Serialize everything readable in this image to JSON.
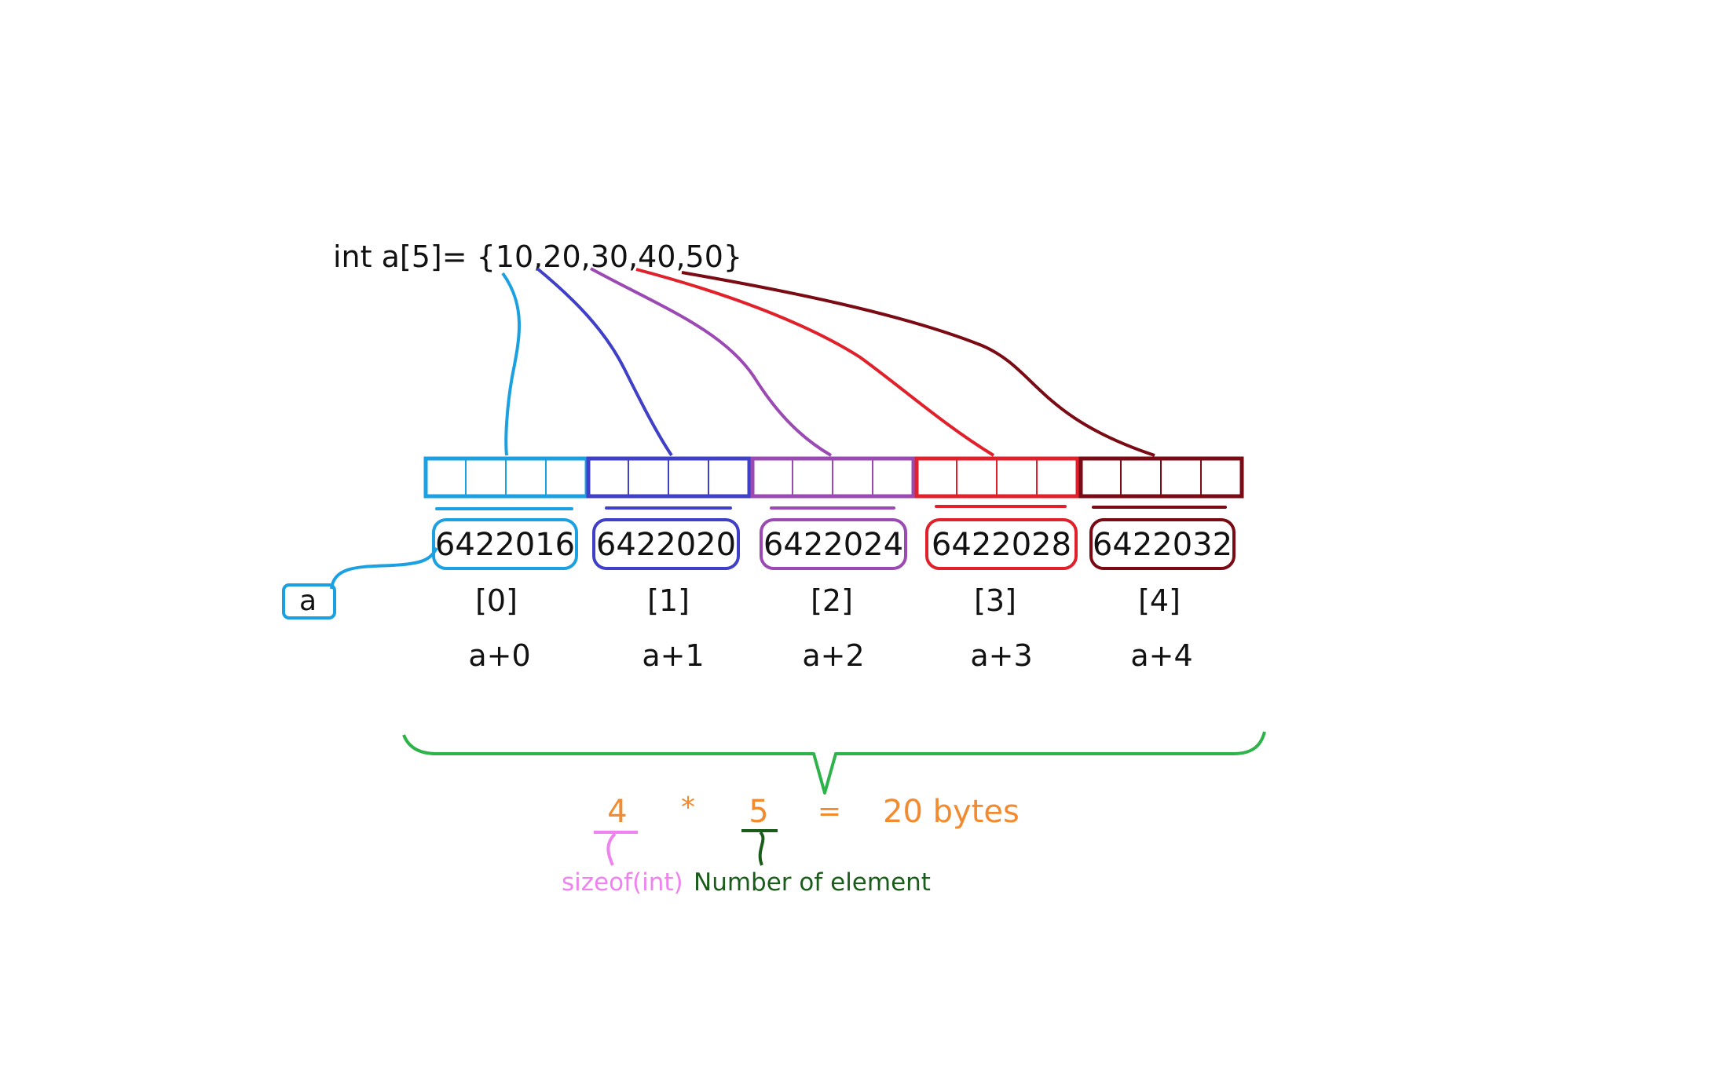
{
  "declaration": "int a[5]= {10,20,30,40,50}",
  "pointer_label": "a",
  "colors": [
    "#1ba1e2",
    "#3f3fc8",
    "#9b4ab4",
    "#e0202a",
    "#7a0a14"
  ],
  "cells": [
    {
      "address": "6422016",
      "index": "[0]",
      "offset": "a+0"
    },
    {
      "address": "6422020",
      "index": "[1]",
      "offset": "a+1"
    },
    {
      "address": "6422024",
      "index": "[2]",
      "offset": "a+2"
    },
    {
      "address": "6422028",
      "index": "[3]",
      "offset": "a+3"
    },
    {
      "address": "6422032",
      "index": "[4]",
      "offset": "a+4"
    }
  ],
  "formula": {
    "size": "4",
    "times": "*",
    "count": "5",
    "equals": "=",
    "result": "20 bytes",
    "size_note": "sizeof(int)",
    "count_note": "Number of element",
    "value_color": "#f28a30",
    "size_note_color": "#ee82ee",
    "count_note_color": "#1a5c1a",
    "brace_color": "#2db34a"
  }
}
